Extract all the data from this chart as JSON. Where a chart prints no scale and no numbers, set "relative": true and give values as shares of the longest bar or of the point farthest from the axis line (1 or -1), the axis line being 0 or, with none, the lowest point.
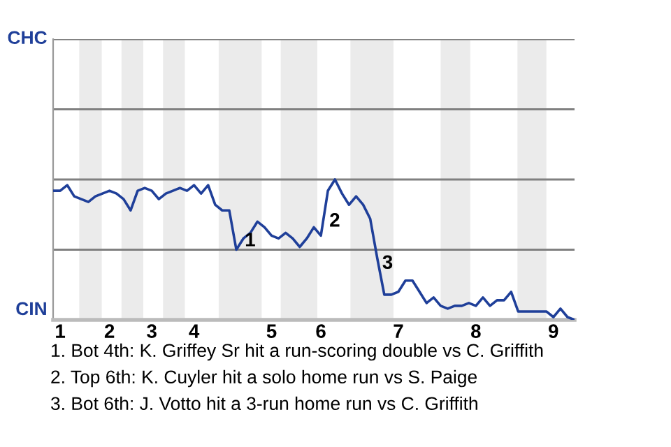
{
  "chart_data": {
    "type": "line",
    "relative": true,
    "categories": [
      null,
      "1",
      null,
      null,
      null,
      null,
      null,
      null,
      "2",
      null,
      null,
      null,
      null,
      null,
      "3",
      null,
      null,
      null,
      null,
      null,
      "4",
      null,
      null,
      null,
      null,
      null,
      null,
      null,
      null,
      null,
      null,
      "5",
      null,
      null,
      null,
      null,
      null,
      null,
      "6",
      null,
      null,
      null,
      null,
      null,
      null,
      null,
      null,
      null,
      null,
      "7",
      null,
      null,
      null,
      null,
      null,
      null,
      null,
      null,
      null,
      null,
      "8",
      null,
      null,
      null,
      null,
      null,
      null,
      null,
      null,
      null,
      null,
      "9",
      null,
      null,
      null
    ],
    "series": [
      {
        "color": "#1f3f99",
        "values": [
          0.92,
          0.92,
          0.96,
          0.88,
          0.86,
          0.84,
          0.88,
          0.9,
          0.92,
          0.9,
          0.86,
          0.78,
          0.92,
          0.94,
          0.92,
          0.86,
          0.9,
          0.92,
          0.94,
          0.92,
          0.96,
          0.9,
          0.96,
          0.82,
          0.78,
          0.78,
          0.5,
          0.58,
          0.62,
          0.7,
          0.66,
          0.6,
          0.58,
          0.62,
          0.58,
          0.52,
          0.58,
          0.66,
          0.6,
          0.92,
          1.0,
          0.9,
          0.82,
          0.88,
          0.82,
          0.72,
          0.44,
          0.18,
          0.18,
          0.2,
          0.28,
          0.28,
          0.2,
          0.12,
          0.16,
          0.1,
          0.08,
          0.1,
          0.1,
          0.12,
          0.1,
          0.16,
          0.1,
          0.14,
          0.14,
          0.2,
          0.06,
          0.06,
          0.06,
          0.06,
          0.06,
          0.02,
          0.08,
          0.02,
          0.0
        ]
      }
    ],
    "ref_lines": [
      {
        "axis": "y",
        "value": 0.5,
        "color": "#808080"
      },
      {
        "axis": "y",
        "value": 1,
        "color": "#808080"
      },
      {
        "axis": "y",
        "value": 1.5,
        "color": "#808080"
      },
      {
        "axis": "y",
        "value": 2,
        "color": "#808080"
      }
    ],
    "annotations": [
      "CHC",
      "CIN",
      "1",
      "2",
      "3",
      "1. Bot 4th: K. Griffey Sr hit a run-scoring double vs C. Griffith",
      "2. Top 6th: K. Cuyler hit a solo home run vs S. Paige",
      "3. Bot 6th: J. Votto hit a 3-run home run vs C. Griffith"
    ]
  }
}
